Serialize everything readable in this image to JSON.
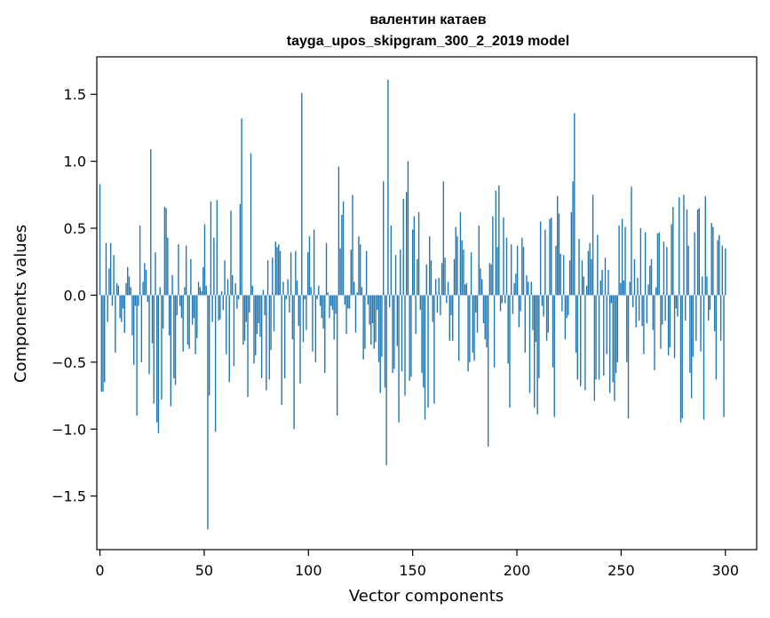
{
  "chart_data": {
    "type": "bar",
    "title_line1": "валентин катаев",
    "title_line2": "tayga_upos_skipgram_300_2_2019 model",
    "xlabel": "Vector components",
    "ylabel": "Components values",
    "xlim": [
      -1.5,
      315
    ],
    "ylim": [
      -1.9,
      1.78
    ],
    "xticks": [
      0,
      50,
      100,
      150,
      200,
      250,
      300
    ],
    "xtick_labels": [
      "0",
      "50",
      "100",
      "150",
      "200",
      "250",
      "300"
    ],
    "yticks": [
      -1.5,
      -1.0,
      -0.5,
      0.0,
      0.5,
      1.0,
      1.5
    ],
    "ytick_labels": [
      "−1.5",
      "−1.0",
      "−0.5",
      "0.0",
      "0.5",
      "1.0",
      "1.5"
    ],
    "bar_color": "#1f77b4",
    "values": [
      0.83,
      -0.72,
      -0.72,
      -0.65,
      0.39,
      -0.2,
      0.2,
      0.39,
      -0.08,
      0.3,
      -0.43,
      0.09,
      0.07,
      -0.17,
      -0.2,
      -0.1,
      -0.28,
      0.09,
      0.21,
      0.14,
      0.06,
      -0.3,
      -0.52,
      -0.08,
      -0.9,
      -0.08,
      0.52,
      -0.5,
      0.1,
      0.24,
      0.19,
      -0.05,
      -0.59,
      1.09,
      -0.36,
      -0.81,
      0.32,
      -0.95,
      -1.03,
      0.06,
      -0.78,
      -0.25,
      0.66,
      0.65,
      0.43,
      -0.3,
      -0.83,
      0.15,
      -0.62,
      -0.67,
      -0.15,
      0.38,
      -0.08,
      -0.17,
      -0.42,
      0.06,
      0.37,
      -0.37,
      -0.4,
      0.27,
      -0.22,
      -0.17,
      -0.44,
      -0.32,
      0.1,
      0.06,
      0.03,
      0.21,
      0.53,
      0.07,
      -1.75,
      -0.75,
      0.7,
      -0.2,
      0.43,
      -1.02,
      0.71,
      -0.19,
      -0.18,
      0.03,
      -0.11,
      0.26,
      -0.44,
      0.12,
      -0.65,
      0.63,
      0.15,
      -0.53,
      0.09,
      -0.1,
      -0.03,
      0.68,
      1.32,
      -0.37,
      -0.34,
      -0.2,
      -0.76,
      -0.13,
      1.06,
      0.07,
      -0.51,
      -0.45,
      -0.29,
      -0.21,
      -0.31,
      -0.62,
      0.04,
      -0.15,
      -0.71,
      0.26,
      -0.63,
      -0.41,
      0.28,
      -0.27,
      0.4,
      0.36,
      0.38,
      0.33,
      -0.82,
      0.1,
      -0.62,
      -0.03,
      0.12,
      -0.13,
      0.32,
      -0.33,
      -1.0,
      0.33,
      0.11,
      -0.23,
      -0.66,
      1.51,
      -0.35,
      -0.03,
      -0.26,
      0.32,
      0.44,
      0.06,
      -0.42,
      0.49,
      -0.5,
      -0.03,
      0.07,
      -0.08,
      -0.17,
      -0.25,
      -0.58,
      0.39,
      0.02,
      -0.17,
      -0.08,
      -0.11,
      -0.33,
      -0.14,
      -0.9,
      0.96,
      0.35,
      0.6,
      0.7,
      -0.07,
      -0.29,
      -0.1,
      -0.1,
      0.34,
      0.75,
      0.1,
      -0.28,
      0.02,
      0.44,
      0.38,
      0.06,
      -0.48,
      -0.4,
      0.33,
      -0.07,
      -0.22,
      -0.37,
      -0.21,
      -0.4,
      -0.35,
      -0.11,
      -0.5,
      -0.73,
      -0.46,
      0.85,
      -0.69,
      -1.27,
      1.61,
      -0.09,
      0.52,
      -0.58,
      -0.55,
      0.3,
      -0.38,
      -0.95,
      0.34,
      -0.57,
      0.72,
      -0.75,
      0.77,
      1.0,
      -0.64,
      -0.61,
      0.49,
      0.59,
      -0.29,
      0.27,
      0.62,
      -0.11,
      -0.58,
      -0.69,
      -0.93,
      0.23,
      -0.84,
      0.44,
      0.26,
      -0.2,
      -0.81,
      0.12,
      -0.13,
      0.13,
      -0.15,
      0.24,
      0.85,
      0.28,
      -0.06,
      0.1,
      -0.34,
      -0.15,
      -0.34,
      0.27,
      0.51,
      0.44,
      -0.49,
      0.62,
      0.41,
      0.34,
      0.08,
      0.09,
      -0.57,
      -0.5,
      0.32,
      -0.43,
      -0.49,
      -0.13,
      -0.28,
      0.52,
      0.2,
      0.12,
      -0.21,
      -0.33,
      -0.39,
      -1.13,
      0.24,
      0.23,
      0.59,
      -0.54,
      0.78,
      0.36,
      0.82,
      -0.12,
      -0.06,
      0.58,
      -0.06,
      0.43,
      -0.51,
      -0.84,
      0.38,
      -0.14,
      0.09,
      0.16,
      0.37,
      -0.24,
      -0.12,
      0.43,
      0.36,
      -0.43,
      0.15,
      0.1,
      -0.73,
      0.1,
      -0.26,
      -0.84,
      -0.35,
      -0.89,
      -0.62,
      0.55,
      -0.08,
      -0.16,
      0.49,
      -0.34,
      -0.28,
      0.57,
      0.58,
      -0.54,
      -0.91,
      0.37,
      0.74,
      0.61,
      0.31,
      -0.12,
      0.3,
      -0.33,
      -0.17,
      -0.15,
      0.26,
      0.62,
      0.85,
      1.36,
      -0.43,
      -0.63,
      0.42,
      -0.68,
      0.26,
      0.14,
      -0.71,
      0.07,
      0.33,
      0.39,
      0.27,
      0.75,
      -0.79,
      -0.63,
      0.45,
      -0.63,
      0.11,
      0.19,
      -0.6,
      0.28,
      -0.44,
      0.19,
      -0.73,
      -0.06,
      -0.65,
      -0.79,
      -0.58,
      -0.5,
      0.52,
      0.09,
      0.57,
      0.11,
      0.51,
      -0.5,
      -0.92,
      0.1,
      0.81,
      -0.09,
      0.27,
      -0.24,
      0.13,
      -0.19,
      0.5,
      -0.23,
      -0.44,
      0.47,
      -0.21,
      0.08,
      0.22,
      0.27,
      -0.26,
      -0.56,
      0.06,
      0.46,
      0.47,
      -0.4,
      -0.22,
      0.4,
      -0.19,
      0.36,
      -0.45,
      -0.39,
      0.53,
      0.66,
      -0.47,
      -0.1,
      -0.16,
      0.73,
      -0.95,
      -0.92,
      0.75,
      -0.19,
      0.64,
      0.37,
      -0.58,
      -0.77,
      -0.46,
      0.47,
      -0.34,
      0.64,
      0.65,
      -0.42,
      0.14,
      -0.93,
      0.74,
      0.14,
      -0.19,
      -0.11,
      0.54,
      0.51,
      -0.27,
      -0.63,
      0.41,
      0.45,
      -0.34,
      0.37,
      -0.91,
      0.35
    ]
  }
}
